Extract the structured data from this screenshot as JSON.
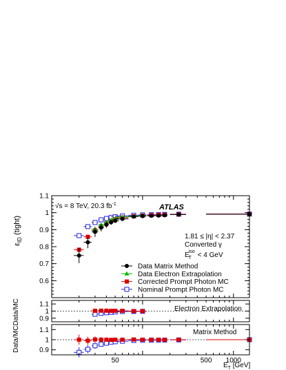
{
  "figure": {
    "top_ylabel_text": "ε",
    "top_ylabel_sub": "ID",
    "top_ylabel_suffix": " (tight)",
    "ratio_ylabel": "Data/MCData/MC",
    "xlabel_text": "E",
    "xlabel_sub": "T",
    "xlabel_unit": " [GeV]",
    "energy_prefix": "√s = 8 TeV, 20.3 fb",
    "energy_sup": "-1",
    "experiment": "ATLAS",
    "cut_eta": "1.81 ≤ |η| < 2.37",
    "cut_conv": "Converted γ",
    "cut_iso_E": "E",
    "cut_iso_sub": "T",
    "cut_iso_sup": "iso",
    "cut_iso_rest": " < 4 GeV",
    "ratio1_title": "Electron Extrapolation",
    "ratio2_title": "Matrix Method"
  },
  "chart_data": [
    {
      "type": "scatter",
      "panel": "main",
      "xscale": "log",
      "xlim": [
        10,
        1500
      ],
      "ylim": [
        0.5,
        1.1
      ],
      "yticks": [
        "0.6",
        "0.7",
        "0.8",
        "0.9",
        "1",
        "1.1"
      ],
      "xticks": [
        "50",
        "500",
        "1000"
      ],
      "ylabel": "ε_ID (tight)",
      "xlabel": "E_T [GeV]",
      "legend_position": "lower-right",
      "series": [
        {
          "name": "Data Matrix Method",
          "color": "#000000",
          "marker": "circle",
          "x": [
            20,
            25,
            30,
            35,
            40,
            45,
            50,
            60,
            80,
            100,
            125,
            150,
            175,
            250,
            1500
          ],
          "xerr": [
            2.5,
            2.5,
            2.5,
            2.5,
            2.5,
            2.5,
            5,
            10,
            10,
            10,
            12.5,
            12.5,
            12.5,
            50,
            1000
          ],
          "y": [
            0.748,
            0.826,
            0.887,
            0.912,
            0.929,
            0.943,
            0.952,
            0.963,
            0.977,
            0.98,
            0.982,
            0.983,
            0.985,
            0.989,
            0.991
          ],
          "yerr": [
            0.045,
            0.035,
            0.03,
            0.022,
            0.018,
            0.014,
            0.01,
            0.008,
            0.007,
            0.006,
            0.006,
            0.006,
            0.006,
            0.006,
            0.006
          ]
        },
        {
          "name": "Data Electron Extrapolation",
          "color": "#00bb00",
          "marker": "triangle",
          "x": [
            30,
            35,
            40,
            45,
            50,
            60,
            80,
            100
          ],
          "xerr": [
            2.5,
            2.5,
            2.5,
            2.5,
            5,
            10,
            10,
            10
          ],
          "y": [
            0.9,
            0.928,
            0.944,
            0.955,
            0.965,
            0.975,
            0.98,
            0.984
          ],
          "yerr": [
            0.01,
            0.006,
            0.004,
            0.004,
            0.004,
            0.004,
            0.004,
            0.004
          ]
        },
        {
          "name": "Corrected Prompt Photon MC",
          "color": "#dd0000",
          "marker": "square",
          "x": [
            20,
            25,
            30,
            35,
            40,
            45,
            50,
            60,
            80,
            100,
            125,
            150,
            175,
            250,
            1500
          ],
          "xerr": [
            2.5,
            2.5,
            2.5,
            2.5,
            2.5,
            2.5,
            5,
            10,
            10,
            10,
            12.5,
            12.5,
            12.5,
            50,
            1000
          ],
          "y": [
            0.782,
            0.858,
            0.896,
            0.92,
            0.937,
            0.952,
            0.961,
            0.971,
            0.979,
            0.983,
            0.985,
            0.987,
            0.988,
            0.99,
            0.992
          ],
          "yerr": [
            0.01,
            0.01,
            0.008,
            0.006,
            0.005,
            0.004,
            0.004,
            0.003,
            0.003,
            0.003,
            0.003,
            0.003,
            0.003,
            0.003,
            0.003
          ]
        },
        {
          "name": "Nominal Prompt Photon MC",
          "color": "#2222dd",
          "marker": "open-square",
          "x": [
            20,
            25,
            30,
            35,
            40,
            45,
            50,
            60,
            80,
            100,
            125,
            150,
            175,
            250,
            1500
          ],
          "xerr": [
            2.5,
            2.5,
            2.5,
            2.5,
            2.5,
            2.5,
            5,
            10,
            10,
            10,
            12.5,
            12.5,
            12.5,
            50,
            1000
          ],
          "y": [
            0.865,
            0.918,
            0.942,
            0.958,
            0.966,
            0.972,
            0.976,
            0.981,
            0.985,
            0.987,
            0.988,
            0.989,
            0.99,
            0.991,
            0.992
          ],
          "yerr": [
            0.005,
            0.004,
            0.003,
            0.003,
            0.003,
            0.003,
            0.003,
            0.003,
            0.002,
            0.002,
            0.002,
            0.002,
            0.002,
            0.002,
            0.002
          ]
        }
      ]
    },
    {
      "type": "scatter",
      "panel": "ratio-electron-extrapolation",
      "xscale": "log",
      "xlim": [
        10,
        1500
      ],
      "ylim": [
        0.85,
        1.15
      ],
      "yticks": [
        "0.9",
        "1",
        "1.1"
      ],
      "reference_line": 1.0,
      "series": [
        {
          "name": "Data Electron Extrapolation",
          "color": "#dd0000",
          "marker": "square",
          "x": [
            30,
            35,
            40,
            45,
            50,
            60,
            80,
            100
          ],
          "xerr": [
            2.5,
            2.5,
            2.5,
            2.5,
            5,
            10,
            10,
            10
          ],
          "y": [
            1.004,
            1.006,
            1.006,
            1.003,
            1.004,
            1.004,
            1.0,
            1.0
          ],
          "yerr": [
            0.012,
            0.008,
            0.006,
            0.006,
            0.005,
            0.005,
            0.005,
            0.005
          ]
        },
        {
          "name": "Nominal",
          "color": "#2222dd",
          "marker": "open-square",
          "x": [
            30,
            35,
            40,
            45,
            50,
            60,
            80,
            100
          ],
          "xerr": [
            2.5,
            2.5,
            2.5,
            2.5,
            5,
            10,
            10,
            10
          ],
          "y": [
            0.955,
            0.968,
            0.977,
            0.982,
            0.988,
            0.994,
            0.995,
            0.997
          ],
          "yerr": [
            0.01,
            0.007,
            0.006,
            0.005,
            0.005,
            0.005,
            0.005,
            0.005
          ]
        }
      ]
    },
    {
      "type": "scatter",
      "panel": "ratio-matrix-method",
      "xscale": "log",
      "xlim": [
        10,
        1500
      ],
      "ylim": [
        0.85,
        1.15
      ],
      "yticks": [
        "0.9",
        "1",
        "1.1"
      ],
      "xticks": [
        "50",
        "500",
        "1000"
      ],
      "reference_line": 1.0,
      "series": [
        {
          "name": "Data Matrix Method",
          "color": "#dd0000",
          "marker": "square",
          "x": [
            20,
            25,
            30,
            35,
            40,
            45,
            50,
            60,
            80,
            100,
            125,
            150,
            175,
            250,
            1500
          ],
          "xerr": [
            2.5,
            2.5,
            2.5,
            2.5,
            2.5,
            2.5,
            5,
            10,
            10,
            10,
            12.5,
            12.5,
            12.5,
            50,
            1000
          ],
          "y": [
            1.0,
            0.99,
            1.002,
            1.0,
            1.0,
            0.998,
            1.0,
            1.0,
            1.002,
            1.0,
            1.0,
            1.0,
            1.0,
            1.0,
            1.0
          ],
          "yerr": [
            0.05,
            0.04,
            0.03,
            0.025,
            0.02,
            0.015,
            0.012,
            0.01,
            0.008,
            0.007,
            0.007,
            0.007,
            0.007,
            0.007,
            0.007
          ]
        },
        {
          "name": "Nominal",
          "color": "#2222dd",
          "marker": "open-square",
          "x": [
            20,
            25,
            30,
            35,
            40,
            45,
            50,
            60,
            80,
            100,
            125,
            150,
            175,
            250,
            1500
          ],
          "xerr": [
            2.5,
            2.5,
            2.5,
            2.5,
            2.5,
            2.5,
            5,
            10,
            10,
            10,
            12.5,
            12.5,
            12.5,
            50,
            1000
          ],
          "y": [
            0.875,
            0.905,
            0.94,
            0.955,
            0.965,
            0.975,
            0.98,
            0.985,
            0.992,
            0.994,
            0.995,
            0.995,
            0.996,
            0.998,
            1.0
          ],
          "yerr": [
            0.05,
            0.04,
            0.03,
            0.025,
            0.02,
            0.015,
            0.012,
            0.01,
            0.008,
            0.007,
            0.007,
            0.007,
            0.007,
            0.007,
            0.007
          ]
        }
      ]
    }
  ]
}
